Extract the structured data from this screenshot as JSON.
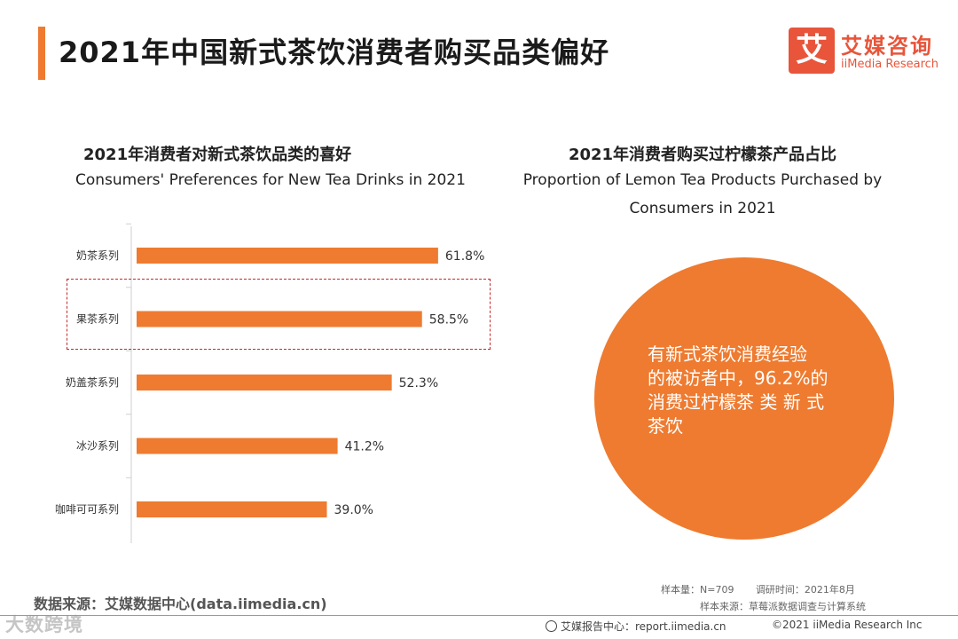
{
  "header": {
    "title": "2021年中国新式茶饮消费者购买品类偏好",
    "logo_mark": "艾",
    "logo_cn": "艾媒咨询",
    "logo_en": "iiMedia Research"
  },
  "left_chart": {
    "title_cn": "2021年消费者对新式茶饮品类的喜好",
    "title_en": "Consumers' Preferences for New Tea Drinks in 2021"
  },
  "right_chart": {
    "title_cn": "2021年消费者购买过柠檬茶产品占比",
    "title_en_line1": "Proportion of Lemon Tea Products Purchased by",
    "title_en_line2": "Consumers in 2021",
    "text_line1": "有新式茶饮消费经验",
    "text_line2": "的被访者中，96.2%的",
    "text_line3": "消费过柠檬茶 类 新 式",
    "text_line4": "茶饮"
  },
  "chart_data": [
    {
      "type": "bar",
      "orientation": "horizontal",
      "title": "2021年消费者对新式茶饮品类的喜好",
      "subtitle": "Consumers' Preferences for New Tea Drinks in 2021",
      "categories": [
        "奶茶系列",
        "果茶系列",
        "奶盖茶系列",
        "冰沙系列",
        "咖啡可可系列"
      ],
      "values": [
        61.8,
        58.5,
        52.3,
        41.2,
        39.0
      ],
      "value_labels": [
        "61.8%",
        "58.5%",
        "52.3%",
        "41.2%",
        "39.0%"
      ],
      "unit": "%",
      "highlighted_category": "果茶系列",
      "xlim": [
        0,
        100
      ],
      "grid": false,
      "color": "#ee7b30"
    },
    {
      "type": "pie",
      "title": "2021年消费者购买过柠檬茶产品占比",
      "subtitle": "Proportion of Lemon Tea Products Purchased by Consumers in 2021",
      "slices": [
        {
          "value": 96.2
        }
      ],
      "color": "#ee7b30"
    }
  ],
  "footer": {
    "source": "数据来源：艾媒数据中心(data.iimedia.cn)",
    "sample": "样本量：N=709",
    "survey_time": "调研时间：2021年8月",
    "sample_source": "样本来源：草莓派数据调查与计算系统",
    "site": "艾媒报告中心：report.iimedia.cn",
    "copyright": "©2021  iiMedia Research  Inc",
    "watermark": "大数跨境"
  }
}
